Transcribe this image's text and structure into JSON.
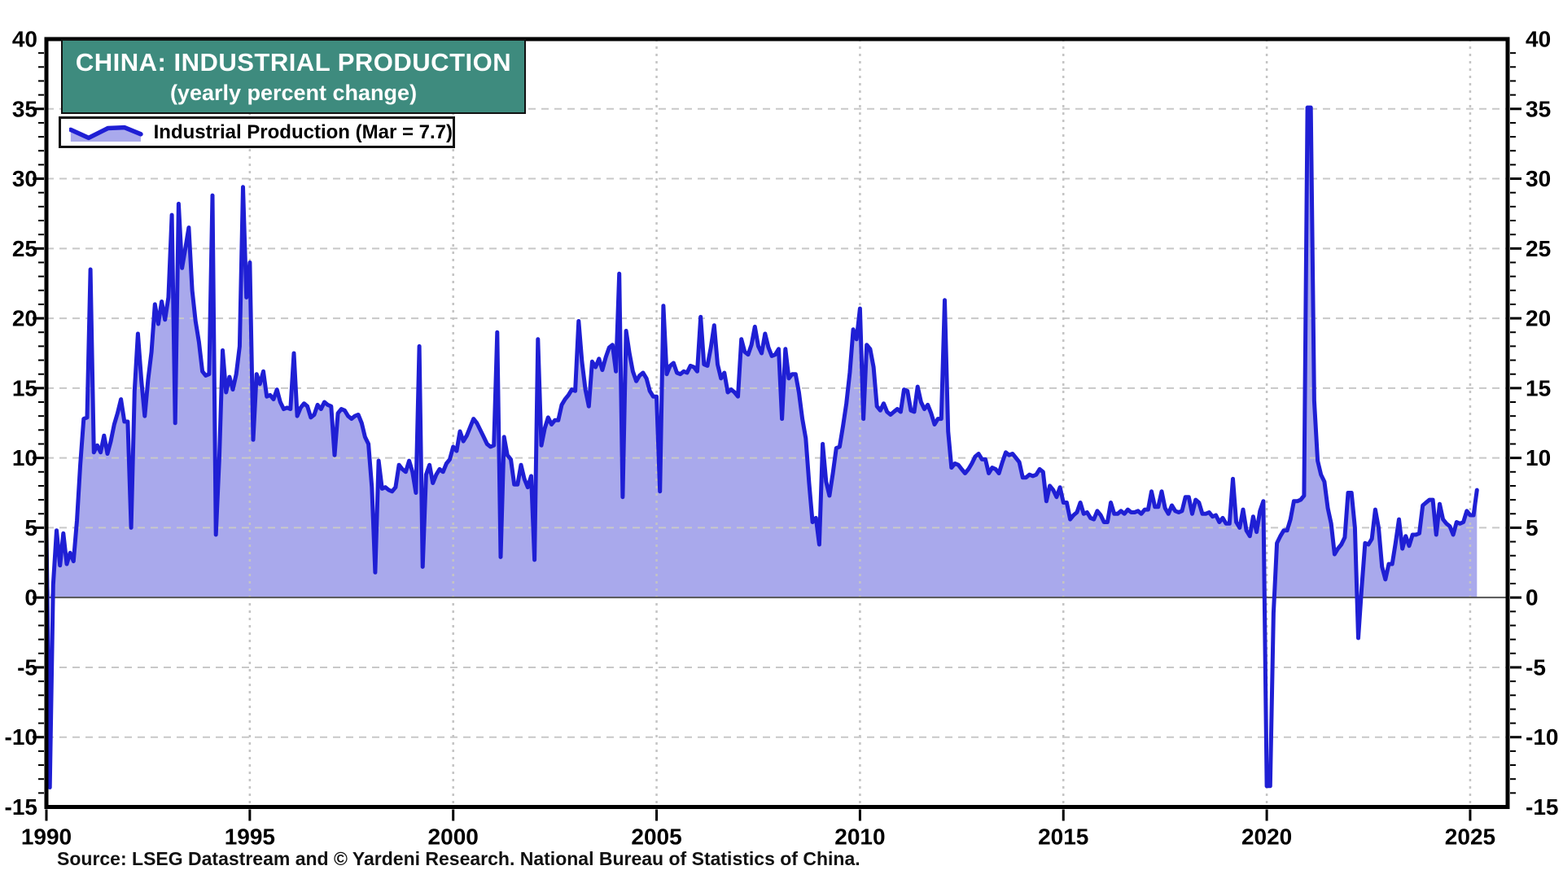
{
  "title_box": {
    "line1": "CHINA: INDUSTRIAL PRODUCTION",
    "line2": "(yearly percent change)",
    "bg_color": "#3e8b7e",
    "text_color": "#ffffff"
  },
  "legend": {
    "label": "Industrial Production (Mar = 7.7)"
  },
  "source_note": "Source: LSEG Datastream and © Yardeni Research. National Bureau of Statistics of China.",
  "chart_data": {
    "type": "area",
    "title": "CHINA: INDUSTRIAL PRODUCTION (yearly percent change)",
    "series_name": "Industrial Production",
    "latest_point_label": "Mar = 7.7",
    "x_start_year": 1990,
    "points_per_year": 12,
    "x_end": "2025-03",
    "ylim": [
      -15,
      40
    ],
    "y_ticks": [
      40,
      35,
      30,
      25,
      20,
      15,
      10,
      5,
      0,
      -5,
      -10,
      -15
    ],
    "x_ticks": [
      1990,
      1995,
      2000,
      2005,
      2010,
      2015,
      2020,
      2025
    ],
    "grid": {
      "horizontal": "dashed",
      "vertical": "dotted",
      "zero_line": true
    },
    "line_color": "#1f1fd4",
    "fill_color": "#a9a9ec",
    "grid_color": "#c8c8c8",
    "monthly_values": [
      4.9,
      -13.6,
      0.9,
      4.8,
      2.3,
      4.6,
      2.4,
      3.2,
      2.6,
      5.5,
      9.5,
      12.8,
      12.9,
      23.5,
      10.4,
      10.9,
      10.4,
      11.6,
      10.3,
      11.2,
      12.4,
      13.2,
      14.2,
      12.6,
      12.6,
      5.0,
      14.8,
      18.9,
      15.6,
      13.0,
      15.6,
      17.6,
      21.0,
      19.6,
      21.2,
      19.9,
      21.5,
      27.4,
      12.5,
      28.2,
      23.6,
      25.0,
      26.5,
      22.0,
      19.8,
      18.3,
      16.2,
      15.9,
      16.0,
      28.8,
      4.5,
      10.0,
      17.7,
      14.7,
      15.8,
      14.9,
      16.0,
      18.0,
      29.4,
      21.5,
      24.0,
      11.3,
      16.0,
      15.3,
      16.2,
      14.4,
      14.5,
      14.2,
      14.9,
      14.0,
      13.5,
      13.6,
      13.5,
      17.5,
      13.0,
      13.6,
      13.9,
      13.7,
      12.9,
      13.1,
      13.8,
      13.5,
      14.0,
      13.8,
      13.7,
      10.2,
      13.2,
      13.5,
      13.4,
      13.0,
      12.8,
      13.0,
      13.1,
      12.5,
      11.5,
      11.0,
      7.9,
      1.8,
      9.8,
      7.8,
      7.9,
      7.7,
      7.6,
      7.9,
      9.5,
      9.2,
      9.0,
      9.8,
      9.0,
      7.5,
      18.0,
      2.2,
      8.8,
      9.5,
      8.2,
      8.8,
      9.2,
      9.0,
      9.6,
      9.9,
      10.8,
      10.5,
      11.9,
      11.2,
      11.6,
      12.2,
      12.8,
      12.5,
      12.0,
      11.5,
      11.0,
      10.8,
      10.9,
      19.0,
      2.9,
      11.5,
      10.2,
      9.9,
      8.1,
      8.1,
      9.5,
      8.5,
      7.9,
      8.7,
      2.7,
      18.5,
      10.9,
      12.1,
      12.9,
      12.4,
      12.7,
      12.7,
      13.8,
      14.2,
      14.5,
      14.9,
      14.8,
      19.8,
      16.9,
      14.9,
      13.7,
      16.9,
      16.5,
      17.1,
      16.3,
      17.2,
      17.9,
      18.1,
      16.2,
      23.2,
      7.2,
      19.1,
      17.5,
      16.2,
      15.5,
      15.9,
      16.1,
      15.7,
      14.8,
      14.4,
      14.4,
      7.6,
      20.9,
      16.0,
      16.6,
      16.8,
      16.1,
      16.0,
      16.2,
      16.1,
      16.6,
      16.5,
      16.2,
      20.1,
      16.7,
      16.6,
      17.9,
      19.5,
      16.7,
      15.7,
      16.1,
      14.7,
      14.9,
      14.7,
      14.4,
      18.5,
      17.6,
      17.4,
      18.1,
      19.4,
      18.0,
      17.5,
      18.9,
      17.9,
      17.3,
      17.4,
      17.8,
      12.8,
      17.8,
      15.7,
      16.0,
      16.0,
      14.7,
      12.8,
      11.4,
      8.2,
      5.4,
      5.7,
      3.8,
      11.0,
      8.3,
      7.3,
      8.9,
      10.7,
      10.8,
      12.3,
      13.9,
      16.1,
      19.2,
      18.5,
      20.7,
      12.8,
      18.1,
      17.8,
      16.5,
      13.7,
      13.4,
      13.9,
      13.3,
      13.1,
      13.3,
      13.5,
      13.3,
      14.9,
      14.8,
      13.4,
      13.3,
      15.1,
      14.0,
      13.5,
      13.8,
      13.2,
      12.4,
      12.8,
      12.8,
      21.3,
      11.9,
      9.3,
      9.6,
      9.5,
      9.2,
      8.9,
      9.2,
      9.6,
      10.1,
      10.3,
      9.9,
      9.9,
      8.9,
      9.3,
      9.2,
      8.9,
      9.7,
      10.4,
      10.2,
      10.3,
      10.0,
      9.7,
      8.6,
      8.6,
      8.8,
      8.7,
      8.8,
      9.2,
      9.0,
      6.9,
      8.0,
      7.7,
      7.2,
      7.9,
      6.8,
      6.8,
      5.6,
      5.9,
      6.1,
      6.8,
      6.0,
      6.1,
      5.7,
      5.6,
      6.2,
      5.9,
      5.4,
      5.4,
      6.8,
      6.0,
      6.0,
      6.2,
      6.0,
      6.3,
      6.1,
      6.1,
      6.2,
      6.0,
      6.3,
      6.3,
      7.6,
      6.5,
      6.5,
      7.6,
      6.4,
      6.0,
      6.6,
      6.2,
      6.1,
      6.2,
      7.2,
      7.2,
      6.0,
      7.0,
      6.8,
      6.0,
      6.0,
      6.1,
      5.8,
      5.9,
      5.4,
      5.7,
      5.3,
      5.3,
      8.5,
      5.4,
      5.0,
      6.3,
      4.8,
      4.4,
      5.8,
      4.7,
      6.2,
      6.9,
      -13.5,
      -13.5,
      -1.1,
      3.9,
      4.4,
      4.8,
      4.8,
      5.6,
      6.9,
      6.9,
      7.0,
      7.3,
      35.1,
      35.1,
      14.1,
      9.8,
      8.8,
      8.3,
      6.4,
      5.3,
      3.1,
      3.5,
      3.8,
      4.3,
      7.5,
      7.5,
      5.0,
      -2.9,
      0.7,
      3.9,
      3.8,
      4.2,
      6.3,
      5.0,
      2.2,
      1.3,
      2.4,
      2.4,
      3.9,
      5.6,
      3.5,
      4.4,
      3.7,
      4.5,
      4.5,
      4.6,
      6.6,
      6.8,
      7.0,
      7.0,
      4.5,
      6.7,
      5.6,
      5.3,
      5.1,
      4.5,
      5.4,
      5.3,
      5.4,
      6.2,
      5.9,
      5.9,
      7.7
    ]
  }
}
